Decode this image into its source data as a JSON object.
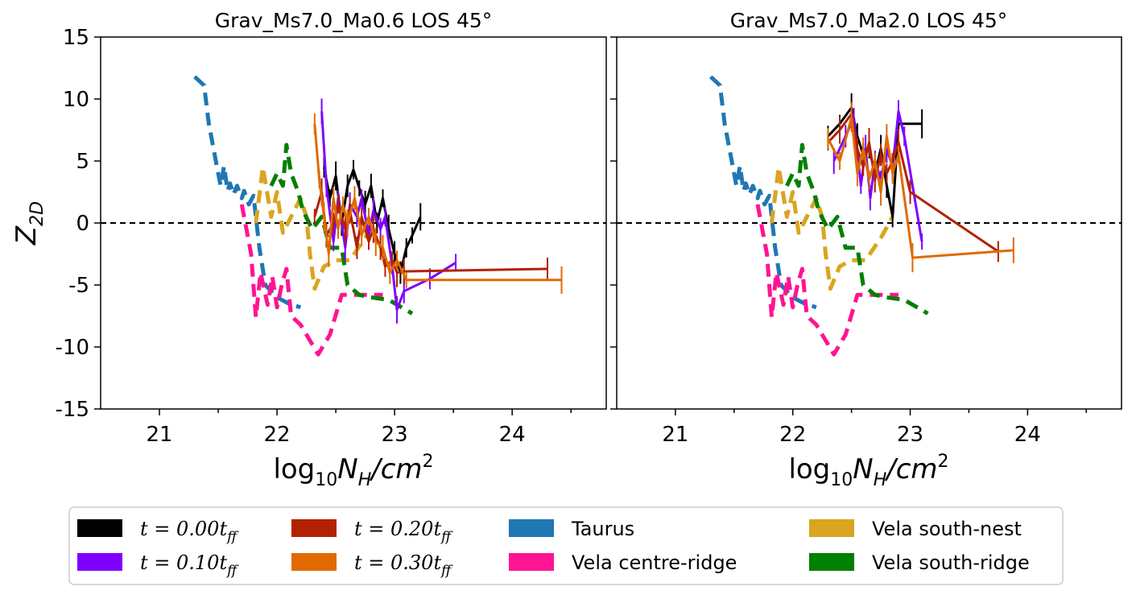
{
  "colors": {
    "t000": "#000000",
    "t010": "#8000ff",
    "t020": "#b22200",
    "t030": "#e06a00",
    "taurus": "#1f77b4",
    "vela_centre": "#ff1493",
    "vela_nest": "#daa520",
    "vela_south": "#008000"
  },
  "chart_data": [
    {
      "type": "line",
      "title": "Grav_Ms7.0_Ma0.6 LOS 45°",
      "xlabel": "log10 NH/cm2",
      "ylabel": "Z2D",
      "xlim": [
        20.5,
        24.8
      ],
      "ylim": [
        -15,
        15
      ],
      "xticks": [
        "21",
        "22",
        "23",
        "24"
      ],
      "yticks": [
        "15",
        "10",
        "5",
        "0",
        "-5",
        "-10",
        "-15"
      ],
      "reference_line": {
        "y": 0,
        "style": "dashed",
        "color": "#000000"
      },
      "series": [
        {
          "name": "Taurus",
          "style": "dashed",
          "color_key": "taurus",
          "x": [
            21.3,
            21.38,
            21.42,
            21.48,
            21.52,
            21.55,
            21.58,
            21.6,
            21.63,
            21.66,
            21.7,
            21.72,
            21.76,
            21.8,
            21.85,
            21.9,
            22.0,
            22.1,
            22.2
          ],
          "y": [
            11.8,
            11.1,
            8.0,
            5.0,
            3.0,
            4.6,
            2.6,
            3.2,
            2.3,
            3.0,
            2.0,
            2.6,
            1.5,
            2.2,
            -2.0,
            -5.0,
            -6.0,
            -6.5,
            -6.8
          ]
        },
        {
          "name": "Vela centre-ridge",
          "style": "dashed",
          "color_key": "vela_centre",
          "x": [
            21.7,
            21.78,
            21.82,
            21.86,
            21.92,
            21.96,
            22.0,
            22.04,
            22.08,
            22.12,
            22.2,
            22.3,
            22.35,
            22.45,
            22.55,
            22.9
          ],
          "y": [
            1.5,
            -2.5,
            -7.6,
            -4.0,
            -6.6,
            -4.3,
            -6.8,
            -5.0,
            -3.7,
            -7.5,
            -8.2,
            -9.8,
            -10.6,
            -9.0,
            -5.8,
            -5.8
          ]
        },
        {
          "name": "Vela south-nest",
          "style": "dashed",
          "color_key": "vela_nest",
          "x": [
            21.82,
            21.88,
            21.95,
            22.0,
            22.05,
            22.12,
            22.2,
            22.25,
            22.28,
            22.32,
            22.4,
            22.5,
            22.62,
            22.75,
            22.85
          ],
          "y": [
            0.0,
            4.5,
            0.5,
            2.5,
            -0.8,
            0.5,
            2.0,
            0.5,
            -2.5,
            -5.3,
            -3.5,
            -3.0,
            -3.0,
            -1.2,
            0.5
          ]
        },
        {
          "name": "Vela south-ridge",
          "style": "dashed",
          "color_key": "vela_south",
          "x": [
            21.95,
            22.0,
            22.05,
            22.08,
            22.12,
            22.18,
            22.22,
            22.3,
            22.38,
            22.45,
            22.55,
            22.6,
            22.7,
            22.8,
            22.95,
            23.15
          ],
          "y": [
            3.0,
            4.0,
            3.0,
            6.3,
            4.0,
            2.5,
            1.0,
            -0.5,
            0.5,
            -2.0,
            -2.0,
            -5.0,
            -5.8,
            -6.0,
            -6.2,
            -7.3
          ]
        },
        {
          "name": "t = 0.00 t_ff",
          "style": "solid",
          "color_key": "t000",
          "x": [
            22.4,
            22.45,
            22.5,
            22.55,
            22.6,
            22.65,
            22.7,
            22.75,
            22.8,
            22.85,
            22.9,
            22.95,
            23.0,
            23.05,
            23.1,
            23.15,
            23.22
          ],
          "y": [
            4.5,
            2.0,
            3.8,
            0.0,
            3.0,
            4.3,
            2.8,
            1.5,
            3.0,
            0.0,
            2.0,
            -0.5,
            -2.5,
            -4.0,
            -2.0,
            -1.0,
            0.5
          ]
        },
        {
          "name": "t = 0.10 t_ff",
          "style": "solid",
          "color_key": "t010",
          "x": [
            22.38,
            22.42,
            22.48,
            22.52,
            22.58,
            22.62,
            22.68,
            22.72,
            22.78,
            22.82,
            22.88,
            22.92,
            22.98,
            23.02,
            23.08,
            23.3,
            23.52
          ],
          "y": [
            9.0,
            3.0,
            -1.5,
            2.0,
            -2.0,
            1.5,
            0.5,
            2.0,
            -1.0,
            1.0,
            -0.5,
            0.5,
            -3.5,
            -7.0,
            -5.5,
            -4.5,
            -3.2
          ]
        },
        {
          "name": "t = 0.20 t_ff",
          "style": "solid",
          "color_key": "t020",
          "x": [
            22.32,
            22.38,
            22.42,
            22.48,
            22.52,
            22.58,
            22.62,
            22.68,
            22.72,
            22.78,
            22.82,
            22.88,
            22.92,
            22.98,
            23.02,
            23.08,
            24.3
          ],
          "y": [
            0.5,
            2.5,
            -1.0,
            0.0,
            1.5,
            -0.5,
            1.0,
            -2.0,
            0.5,
            -1.5,
            -0.5,
            -2.0,
            -3.5,
            -3.0,
            -4.0,
            -3.9,
            -3.7
          ]
        },
        {
          "name": "t = 0.30 t_ff",
          "style": "solid",
          "color_key": "t030",
          "x": [
            22.32,
            22.36,
            22.4,
            22.44,
            22.48,
            22.52,
            22.56,
            22.6,
            22.66,
            22.72,
            22.78,
            22.84,
            22.9,
            22.96,
            23.02,
            23.1,
            24.42
          ],
          "y": [
            8.0,
            3.5,
            0.5,
            -2.5,
            2.0,
            -0.5,
            1.5,
            0.0,
            2.0,
            -1.0,
            0.5,
            -1.5,
            -2.0,
            -4.0,
            -3.0,
            -4.6,
            -4.6
          ]
        }
      ]
    },
    {
      "type": "line",
      "title": "Grav_Ms7.0_Ma2.0 LOS 45°",
      "xlabel": "log10 NH/cm2",
      "ylabel": "",
      "xlim": [
        20.5,
        24.8
      ],
      "ylim": [
        -15,
        15
      ],
      "xticks": [
        "21",
        "22",
        "23",
        "24"
      ],
      "yticks": [],
      "reference_line": {
        "y": 0,
        "style": "dashed",
        "color": "#000000"
      },
      "series": [
        {
          "name": "Taurus",
          "style": "dashed",
          "color_key": "taurus",
          "x": [
            21.3,
            21.38,
            21.42,
            21.48,
            21.52,
            21.55,
            21.58,
            21.6,
            21.63,
            21.66,
            21.7,
            21.72,
            21.76,
            21.8,
            21.85,
            21.9,
            22.0,
            22.1,
            22.2
          ],
          "y": [
            11.8,
            11.1,
            8.0,
            5.0,
            3.0,
            4.6,
            2.6,
            3.2,
            2.3,
            3.0,
            2.0,
            2.6,
            1.5,
            2.2,
            -2.0,
            -5.0,
            -6.0,
            -6.5,
            -6.8
          ]
        },
        {
          "name": "Vela centre-ridge",
          "style": "dashed",
          "color_key": "vela_centre",
          "x": [
            21.7,
            21.78,
            21.82,
            21.86,
            21.92,
            21.96,
            22.0,
            22.04,
            22.08,
            22.12,
            22.2,
            22.3,
            22.35,
            22.45,
            22.55,
            22.9
          ],
          "y": [
            1.5,
            -2.5,
            -7.6,
            -4.0,
            -6.6,
            -4.3,
            -6.8,
            -5.0,
            -3.7,
            -7.5,
            -8.2,
            -9.8,
            -10.6,
            -9.0,
            -5.8,
            -5.8
          ]
        },
        {
          "name": "Vela south-nest",
          "style": "dashed",
          "color_key": "vela_nest",
          "x": [
            21.82,
            21.88,
            21.95,
            22.0,
            22.05,
            22.12,
            22.2,
            22.25,
            22.28,
            22.32,
            22.4,
            22.5,
            22.62,
            22.75,
            22.85
          ],
          "y": [
            0.0,
            4.5,
            0.5,
            2.5,
            -0.8,
            0.5,
            2.0,
            0.5,
            -2.5,
            -5.3,
            -3.5,
            -3.0,
            -3.0,
            -1.2,
            0.5
          ]
        },
        {
          "name": "Vela south-ridge",
          "style": "dashed",
          "color_key": "vela_south",
          "x": [
            21.95,
            22.0,
            22.05,
            22.08,
            22.12,
            22.18,
            22.22,
            22.3,
            22.38,
            22.45,
            22.55,
            22.6,
            22.7,
            22.8,
            22.95,
            23.15
          ],
          "y": [
            3.0,
            4.0,
            3.0,
            6.3,
            4.0,
            2.5,
            1.0,
            -0.5,
            0.5,
            -2.0,
            -2.0,
            -5.0,
            -5.8,
            -6.0,
            -6.2,
            -7.3
          ]
        },
        {
          "name": "t = 0.00 t_ff",
          "style": "solid",
          "color_key": "t000",
          "x": [
            22.3,
            22.4,
            22.5,
            22.55,
            22.6,
            22.65,
            22.7,
            22.75,
            22.8,
            22.85,
            22.9,
            23.1
          ],
          "y": [
            7.0,
            8.0,
            9.3,
            7.0,
            5.5,
            6.0,
            4.0,
            6.0,
            3.0,
            0.5,
            8.0,
            8.0
          ]
        },
        {
          "name": "t = 0.10 t_ff",
          "style": "solid",
          "color_key": "t010",
          "x": [
            22.35,
            22.45,
            22.52,
            22.58,
            22.62,
            22.66,
            22.7,
            22.75,
            22.8,
            22.85,
            22.9,
            22.95,
            23.1
          ],
          "y": [
            5.0,
            7.0,
            8.5,
            3.0,
            6.0,
            2.0,
            5.0,
            3.5,
            6.0,
            4.5,
            9.0,
            7.0,
            -1.5
          ]
        },
        {
          "name": "t = 0.20 t_ff",
          "style": "solid",
          "color_key": "t020",
          "x": [
            22.3,
            22.4,
            22.5,
            22.55,
            22.6,
            22.65,
            22.7,
            22.75,
            22.8,
            22.85,
            22.9,
            23.0,
            23.75
          ],
          "y": [
            6.5,
            7.5,
            8.8,
            6.0,
            4.5,
            6.5,
            3.5,
            5.5,
            4.0,
            5.0,
            6.5,
            2.5,
            -2.3
          ]
        },
        {
          "name": "t = 0.30 t_ff",
          "style": "solid",
          "color_key": "t030",
          "x": [
            22.3,
            22.4,
            22.5,
            22.55,
            22.6,
            22.65,
            22.7,
            22.75,
            22.8,
            22.85,
            22.9,
            23.02,
            23.88
          ],
          "y": [
            6.8,
            5.0,
            8.5,
            4.0,
            6.0,
            3.5,
            5.0,
            2.5,
            7.0,
            4.0,
            5.5,
            -2.8,
            -2.2
          ]
        }
      ]
    }
  ],
  "legend": {
    "items": [
      {
        "label": "t = 0.00t",
        "sub": "ff",
        "math": true,
        "color_key": "t000"
      },
      {
        "label": "t = 0.20t",
        "sub": "ff",
        "math": true,
        "color_key": "t020"
      },
      {
        "label": "Taurus",
        "sub": "",
        "math": false,
        "color_key": "taurus"
      },
      {
        "label": "Vela south-nest",
        "sub": "",
        "math": false,
        "color_key": "vela_nest"
      },
      {
        "label": "t = 0.10t",
        "sub": "ff",
        "math": true,
        "color_key": "t010"
      },
      {
        "label": "t = 0.30t",
        "sub": "ff",
        "math": true,
        "color_key": "t030"
      },
      {
        "label": "Vela centre-ridge",
        "sub": "",
        "math": false,
        "color_key": "vela_centre"
      },
      {
        "label": "Vela south-ridge",
        "sub": "",
        "math": false,
        "color_key": "vela_south"
      }
    ]
  },
  "labels": {
    "xlabel_main": "log",
    "xlabel_sub1": "10",
    "xlabel_mid": "N",
    "xlabel_sub2": "H",
    "xlabel_tail": "/cm",
    "xlabel_sup": "2",
    "ylabel_main": "Z",
    "ylabel_sub": "2D"
  }
}
